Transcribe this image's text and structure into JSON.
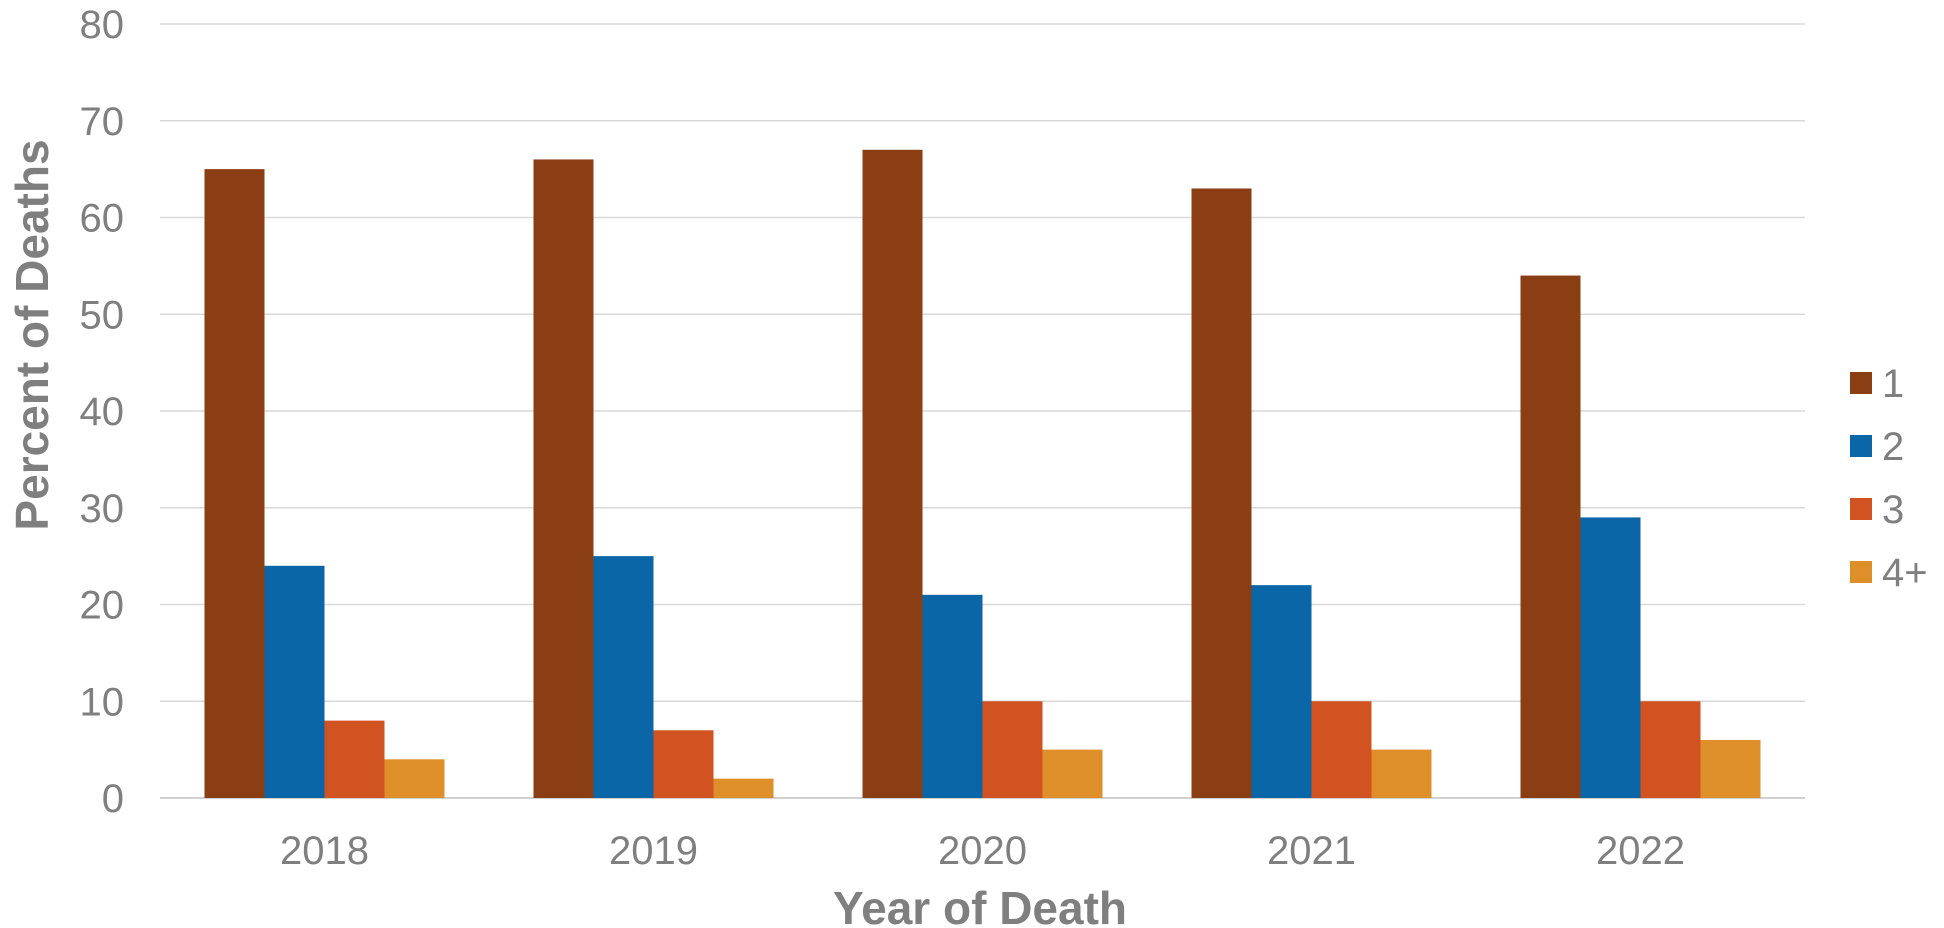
{
  "chart_data": {
    "type": "bar",
    "title": "",
    "xlabel": "Year of Death",
    "ylabel": "Percent of Deaths",
    "categories": [
      "2018",
      "2019",
      "2020",
      "2021",
      "2022"
    ],
    "series": [
      {
        "name": "1",
        "color": "#8B3E14",
        "values": [
          65,
          66,
          67,
          63,
          54
        ]
      },
      {
        "name": "2",
        "color": "#0B66A8",
        "values": [
          24,
          25,
          21,
          22,
          29
        ]
      },
      {
        "name": "3",
        "color": "#D15322",
        "values": [
          8,
          7,
          10,
          10,
          10
        ]
      },
      {
        "name": "4+",
        "color": "#DF8F2A",
        "values": [
          4,
          2,
          5,
          5,
          6
        ]
      }
    ],
    "ylim": [
      0,
      80
    ],
    "yticks": [
      "0",
      "10",
      "20",
      "30",
      "40",
      "50",
      "60",
      "70",
      "80"
    ],
    "grid": true,
    "legend_position": "right"
  }
}
